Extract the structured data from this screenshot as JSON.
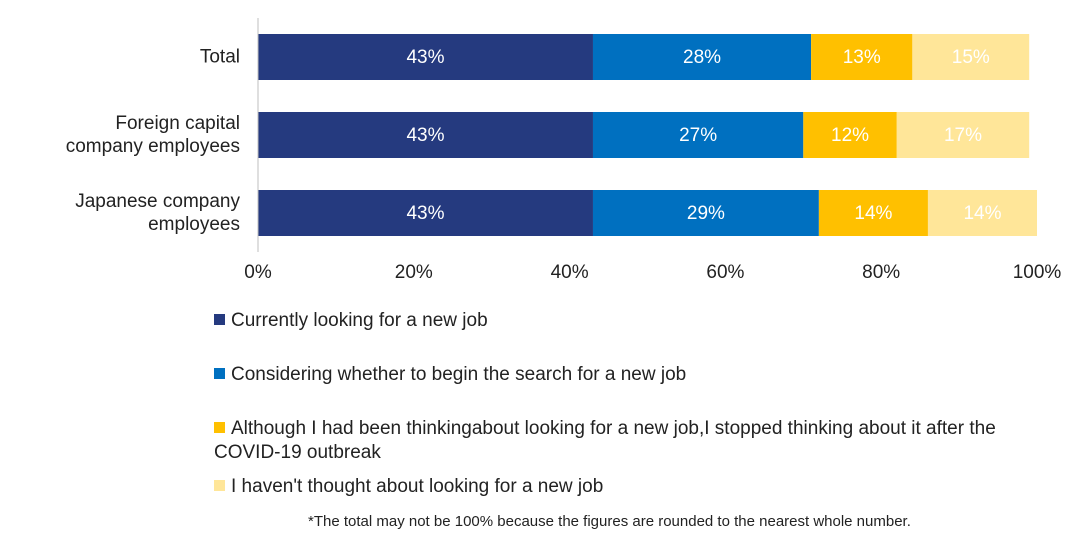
{
  "chart_data": {
    "type": "stacked_barh",
    "categories": [
      "Total",
      "Foreign capital company employees",
      "Japanese company employees"
    ],
    "series": [
      {
        "name": "Currently looking for a new job",
        "color": "#253a7f",
        "values": [
          43,
          43,
          43
        ]
      },
      {
        "name": "Considering whether to begin the search for a new job",
        "color": "#0070c0",
        "values": [
          28,
          27,
          29
        ]
      },
      {
        "name": "Although I had been thinkingabout looking for a new job,I stopped thinking about it after the COVID-19 outbreak",
        "color": "#ffc000",
        "values": [
          13,
          12,
          14
        ]
      },
      {
        "name": "I haven't thought about looking for a new job",
        "color": "#ffe699",
        "values": [
          15,
          17,
          14
        ]
      }
    ],
    "value_labels": [
      [
        "43%",
        "43%",
        "43%"
      ],
      [
        "28%",
        "27%",
        "29%"
      ],
      [
        "13%",
        "12%",
        "14%"
      ],
      [
        "15%",
        "17%",
        "14%"
      ]
    ],
    "xlim": [
      0,
      100
    ],
    "xticks": [
      {
        "value": 0,
        "label": "0%"
      },
      {
        "value": 20,
        "label": "20%"
      },
      {
        "value": 40,
        "label": "40%"
      },
      {
        "value": 60,
        "label": "60%"
      },
      {
        "value": 80,
        "label": "80%"
      },
      {
        "value": 100,
        "label": "100%"
      }
    ],
    "note": "*The total may not be 100% because the figures are rounded to the nearest whole number."
  }
}
